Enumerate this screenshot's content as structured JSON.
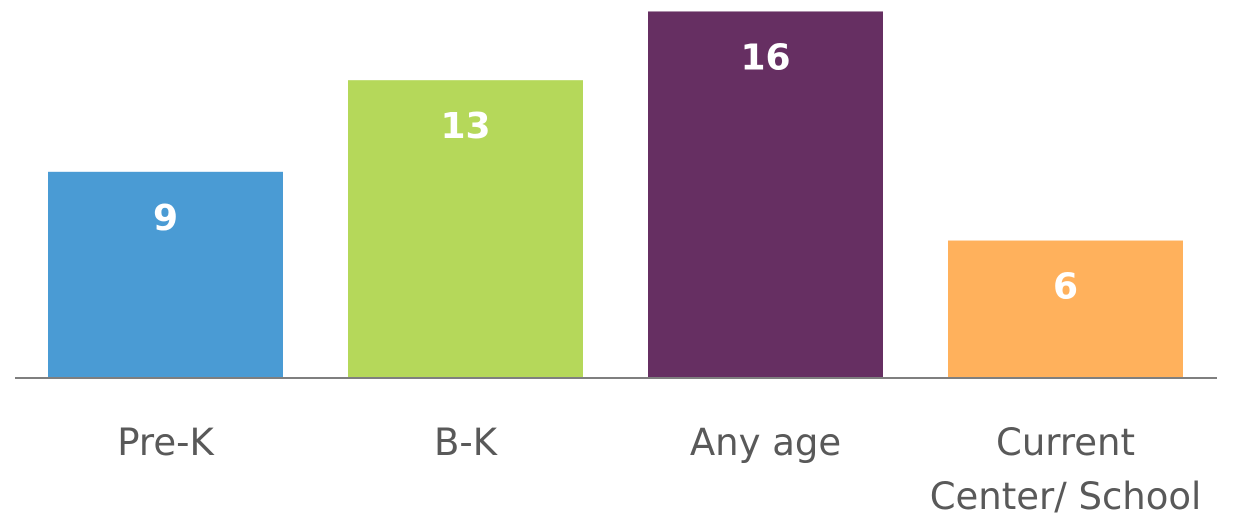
{
  "chart_data": {
    "type": "bar",
    "categories": [
      "Pre-K",
      "B-K",
      "Any age",
      "Current Center/ School"
    ],
    "category_label_lines": [
      [
        "Pre-K"
      ],
      [
        "B-K"
      ],
      [
        "Any age"
      ],
      [
        "Current",
        "Center/ School"
      ]
    ],
    "values": [
      9,
      13,
      16,
      6
    ],
    "data_labels": [
      "9",
      "13",
      "16",
      "6"
    ],
    "colors": [
      "#4a9bd4",
      "#b5d85a",
      "#662f62",
      "#ffb15c"
    ],
    "axis_color": "#7f7f7f",
    "label_color": "#595959",
    "ylim": [
      0,
      16.5
    ],
    "grid": false,
    "legend": "none"
  }
}
